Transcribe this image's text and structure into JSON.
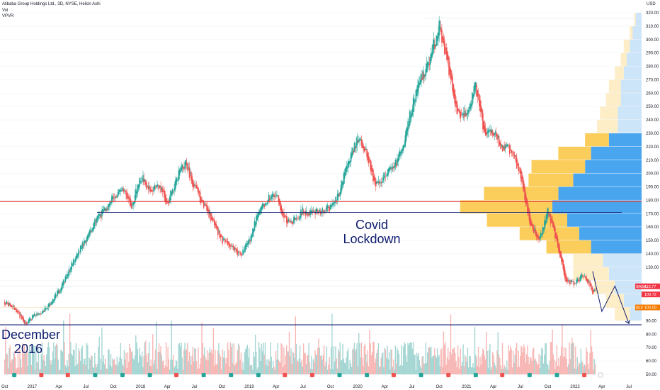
{
  "header": {
    "symbol": "Alibaba Group Holdings Ltd., 3D, NYSE, Heikin Ashi",
    "indicator1": "Vol",
    "indicator2": "VPVR"
  },
  "annotations": {
    "covid": [
      "Covid",
      "Lockdown"
    ],
    "december": [
      "December",
      "2016"
    ]
  },
  "chart_data": {
    "type": "candlestick",
    "chart_style": "Heikin Ashi",
    "currency": "USD",
    "y_axis": {
      "min": 50,
      "max": 320,
      "ticks": [
        50,
        60,
        70,
        80,
        90,
        100,
        110,
        120,
        130,
        140,
        150,
        160,
        170,
        180,
        190,
        200,
        210,
        220,
        230,
        240,
        250,
        260,
        270,
        280,
        290,
        300,
        310,
        320
      ],
      "tick_labels": [
        "50.00",
        "60.00",
        "70.00",
        "80.00",
        "90.00",
        "",
        "",
        "",
        "130.00",
        "140.00",
        "150.00",
        "160.00",
        "170.00",
        "180.00",
        "190.00",
        "200.00",
        "210.00",
        "220.00",
        "230.00",
        "240.00",
        "250.00",
        "260.00",
        "270.00",
        "280.00",
        "290.00",
        "300.00",
        "310.00",
        "320.00"
      ]
    },
    "x_axis": {
      "labels": [
        "Oct",
        "2017",
        "Apr",
        "Jul",
        "Oct",
        "2018",
        "Apr",
        "Jul",
        "Oct",
        "2019",
        "Apr",
        "Jul",
        "Oct",
        "2020",
        "Apr",
        "Jul",
        "Oct",
        "2021",
        "Apr",
        "Jul",
        "Oct",
        "2022",
        "Apr",
        "Jul"
      ]
    },
    "price_series": [
      [
        "2016-10-01",
        104
      ],
      [
        "2016-11-01",
        100
      ],
      [
        "2016-12-10",
        88
      ],
      [
        "2017-01-01",
        93
      ],
      [
        "2017-02-01",
        96
      ],
      [
        "2017-03-01",
        103
      ],
      [
        "2017-04-01",
        112
      ],
      [
        "2017-05-01",
        125
      ],
      [
        "2017-06-01",
        140
      ],
      [
        "2017-07-01",
        150
      ],
      [
        "2017-08-01",
        165
      ],
      [
        "2017-09-01",
        172
      ],
      [
        "2017-10-01",
        182
      ],
      [
        "2017-11-01",
        188
      ],
      [
        "2017-12-01",
        175
      ],
      [
        "2018-01-01",
        198
      ],
      [
        "2018-02-01",
        188
      ],
      [
        "2018-03-01",
        192
      ],
      [
        "2018-04-01",
        178
      ],
      [
        "2018-05-01",
        196
      ],
      [
        "2018-06-01",
        208
      ],
      [
        "2018-07-01",
        190
      ],
      [
        "2018-08-01",
        176
      ],
      [
        "2018-09-01",
        165
      ],
      [
        "2018-10-01",
        150
      ],
      [
        "2018-11-01",
        145
      ],
      [
        "2018-12-01",
        138
      ],
      [
        "2019-01-01",
        150
      ],
      [
        "2019-02-01",
        172
      ],
      [
        "2019-03-01",
        180
      ],
      [
        "2019-04-01",
        186
      ],
      [
        "2019-05-01",
        165
      ],
      [
        "2019-06-01",
        165
      ],
      [
        "2019-07-01",
        172
      ],
      [
        "2019-08-01",
        170
      ],
      [
        "2019-09-01",
        172
      ],
      [
        "2019-10-01",
        175
      ],
      [
        "2019-11-01",
        186
      ],
      [
        "2019-12-01",
        210
      ],
      [
        "2020-01-01",
        225
      ],
      [
        "2020-02-01",
        215
      ],
      [
        "2020-03-01",
        190
      ],
      [
        "2020-04-01",
        200
      ],
      [
        "2020-05-01",
        205
      ],
      [
        "2020-06-01",
        218
      ],
      [
        "2020-07-01",
        250
      ],
      [
        "2020-08-01",
        270
      ],
      [
        "2020-09-01",
        285
      ],
      [
        "2020-10-01",
        310
      ],
      [
        "2020-11-01",
        280
      ],
      [
        "2020-12-01",
        245
      ],
      [
        "2021-01-01",
        245
      ],
      [
        "2021-02-01",
        265
      ],
      [
        "2021-03-01",
        232
      ],
      [
        "2021-04-01",
        230
      ],
      [
        "2021-05-01",
        220
      ],
      [
        "2021-06-01",
        218
      ],
      [
        "2021-07-01",
        200
      ],
      [
        "2021-08-01",
        165
      ],
      [
        "2021-09-01",
        150
      ],
      [
        "2021-10-01",
        172
      ],
      [
        "2021-11-01",
        150
      ],
      [
        "2021-12-01",
        120
      ],
      [
        "2022-01-01",
        118
      ],
      [
        "2022-02-01",
        125
      ],
      [
        "2022-03-01",
        112
      ]
    ],
    "horizontal_levels": [
      {
        "value": 179,
        "color": "#e53935"
      },
      {
        "value": 171,
        "color": "#0d1b6e"
      },
      {
        "value": 87,
        "color": "#0d1b6e"
      }
    ],
    "price_tags": [
      {
        "label": "BABA",
        "value": "115.77",
        "y": 115.77,
        "color": "#f23645"
      },
      {
        "value": "109.72",
        "y": 109.72,
        "color": "#f23645"
      },
      {
        "label": "BLV",
        "value": "100.00",
        "y": 100.0,
        "color": "#f57c00"
      }
    ],
    "projection_path": [
      [
        "2022-03-01",
        127
      ],
      [
        "2022-04-01",
        97
      ],
      [
        "2022-05-15",
        116
      ],
      [
        "2022-07-01",
        88
      ]
    ],
    "volume_profile": [
      {
        "price": 95,
        "up": 8,
        "down": 10
      },
      {
        "price": 105,
        "up": 12,
        "down": 12
      },
      {
        "price": 115,
        "up": 18,
        "down": 14
      },
      {
        "price": 125,
        "up": 22,
        "down": 24
      },
      {
        "price": 135,
        "up": 26,
        "down": 20
      },
      {
        "price": 145,
        "up": 34,
        "down": 30
      },
      {
        "price": 155,
        "up": 42,
        "down": 40
      },
      {
        "price": 165,
        "up": 50,
        "down": 54
      },
      {
        "price": 175,
        "up": 60,
        "down": 62
      },
      {
        "price": 185,
        "up": 56,
        "down": 50
      },
      {
        "price": 195,
        "up": 46,
        "down": 30
      },
      {
        "price": 205,
        "up": 38,
        "down": 36
      },
      {
        "price": 215,
        "up": 34,
        "down": 22
      },
      {
        "price": 225,
        "up": 22,
        "down": 16
      },
      {
        "price": 235,
        "up": 16,
        "down": 14
      },
      {
        "price": 245,
        "up": 16,
        "down": 12
      },
      {
        "price": 255,
        "up": 14,
        "down": 10
      },
      {
        "price": 265,
        "up": 14,
        "down": 8
      },
      {
        "price": 275,
        "up": 12,
        "down": 6
      },
      {
        "price": 285,
        "up": 10,
        "down": 4
      },
      {
        "price": 295,
        "up": 8,
        "down": 4
      },
      {
        "price": 305,
        "up": 6,
        "down": 2
      },
      {
        "price": 315,
        "up": 4,
        "down": 1
      }
    ]
  }
}
